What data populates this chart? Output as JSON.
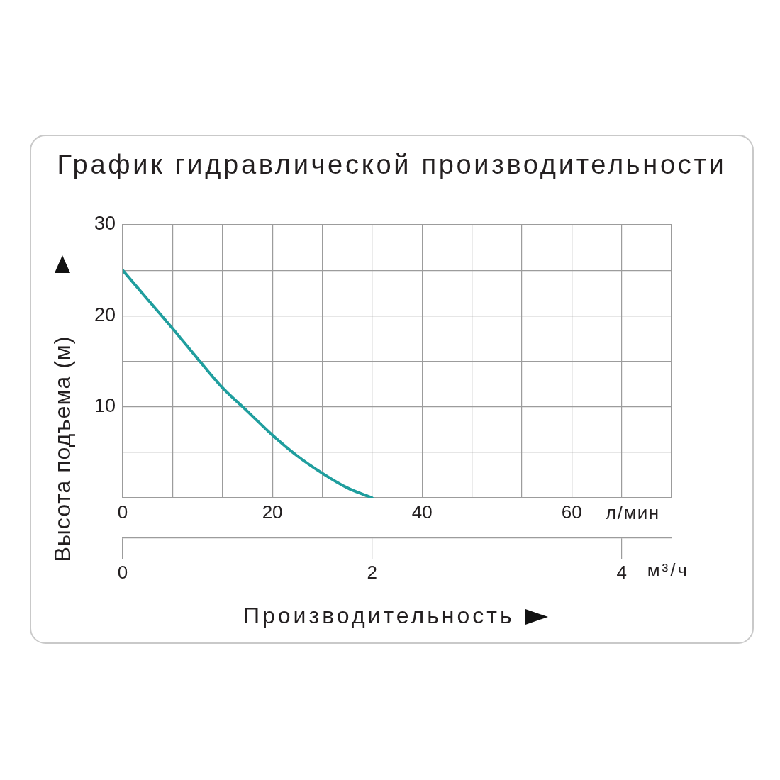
{
  "chart_data": {
    "type": "line",
    "title": "График гидравлической производительности",
    "xlabel": "Производительность",
    "ylabel": "Высота подъема (м)",
    "x2label": "м³/ч",
    "annotations": [
      "л/мин"
    ],
    "x": [
      0,
      3.33,
      6.67,
      10,
      13.33,
      16.67,
      20,
      23.33,
      26.67,
      30,
      33.33
    ],
    "series": [
      {
        "color": "#1f9e9e",
        "values": [
          25,
          21.8,
          18.6,
          15.3,
          12.1,
          9.5,
          6.9,
          4.6,
          2.7,
          1.1,
          0
        ]
      }
    ],
    "xlim": [
      0,
      73.33
    ],
    "xticks": [
      0,
      {
        "value": 6.67,
        "label": null
      },
      {
        "value": 13.33,
        "label": null
      },
      20,
      {
        "value": 26.67,
        "label": null
      },
      {
        "value": 33.33,
        "label": null
      },
      40,
      {
        "value": 46.67,
        "label": null
      },
      {
        "value": 53.33,
        "label": null
      },
      60,
      {
        "value": 66.67,
        "label": null
      },
      {
        "value": 73.33,
        "label": null
      }
    ],
    "ylim": [
      0,
      30
    ],
    "yticks": [
      {
        "value": 0,
        "label": null
      },
      {
        "value": 5,
        "label": null
      },
      10,
      {
        "value": 15,
        "label": null
      },
      20,
      {
        "value": 25,
        "label": null
      },
      30
    ],
    "x2lim": [
      0,
      4.4
    ],
    "x2ticks": [
      0,
      2,
      4
    ],
    "grid": true,
    "marker": "none"
  }
}
